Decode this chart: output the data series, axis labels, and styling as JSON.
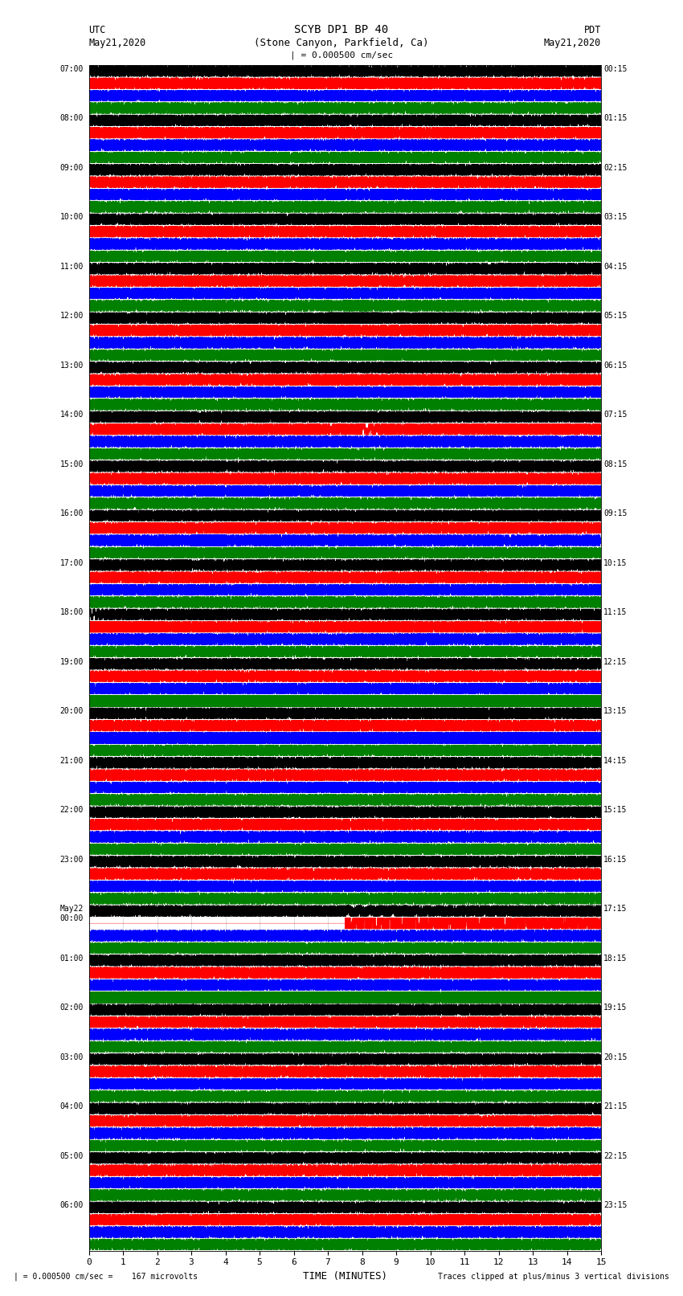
{
  "title_line1": "SCYB DP1 BP 40",
  "title_line2": "(Stone Canyon, Parkfield, Ca)",
  "left_label_top": "UTC",
  "left_label_date": "May21,2020",
  "right_label_top": "PDT",
  "right_label_date": "May21,2020",
  "scale_label": "| = 0.000500 cm/sec",
  "bottom_note": "| = 0.000500 cm/sec =    167 microvolts",
  "clip_note": "Traces clipped at plus/minus 3 vertical divisions",
  "xlabel": "TIME (MINUTES)",
  "xmin": 0,
  "xmax": 15,
  "xticks": [
    0,
    1,
    2,
    3,
    4,
    5,
    6,
    7,
    8,
    9,
    10,
    11,
    12,
    13,
    14,
    15
  ],
  "utc_labels": [
    "07:00",
    "08:00",
    "09:00",
    "10:00",
    "11:00",
    "12:00",
    "13:00",
    "14:00",
    "15:00",
    "16:00",
    "17:00",
    "18:00",
    "19:00",
    "20:00",
    "21:00",
    "22:00",
    "23:00",
    "May22\n00:00",
    "01:00",
    "02:00",
    "03:00",
    "04:00",
    "05:00",
    "06:00"
  ],
  "pdt_labels": [
    "00:15",
    "01:15",
    "02:15",
    "03:15",
    "04:15",
    "05:15",
    "06:15",
    "07:15",
    "08:15",
    "09:15",
    "10:15",
    "11:15",
    "12:15",
    "13:15",
    "14:15",
    "15:15",
    "16:15",
    "17:15",
    "18:15",
    "19:15",
    "20:15",
    "21:15",
    "22:15",
    "23:15"
  ],
  "num_rows": 24,
  "traces_per_row": 4,
  "bg_color": "white",
  "trace_color_order": [
    "black",
    "red",
    "blue",
    "green"
  ],
  "noise_seed": 42
}
